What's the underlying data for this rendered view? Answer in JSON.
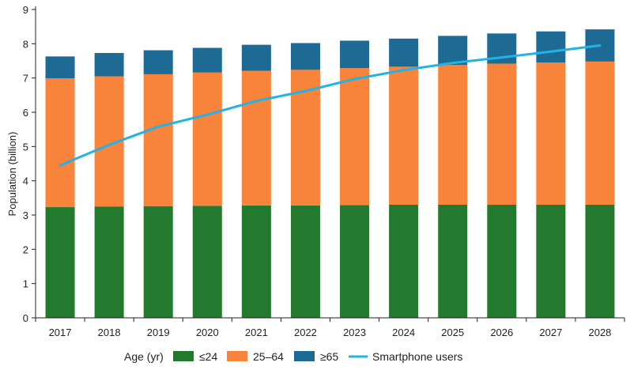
{
  "chart_data": {
    "type": "bar",
    "stacked": true,
    "title": "",
    "xlabel": "",
    "ylabel": "Population (billion)",
    "ylim": [
      0,
      9
    ],
    "yticks": [
      "0",
      "1",
      "2",
      "3",
      "4",
      "5",
      "6",
      "7",
      "8",
      "9"
    ],
    "categories": [
      "2017",
      "2018",
      "2019",
      "2020",
      "2021",
      "2022",
      "2023",
      "2024",
      "2025",
      "2026",
      "2027",
      "2028"
    ],
    "series": [
      {
        "name": "≤24",
        "color": "#237a2e",
        "values": [
          3.23,
          3.25,
          3.26,
          3.27,
          3.28,
          3.28,
          3.29,
          3.3,
          3.3,
          3.3,
          3.3,
          3.3
        ]
      },
      {
        "name": "25–64",
        "color": "#f7843a",
        "values": [
          3.76,
          3.8,
          3.85,
          3.89,
          3.93,
          3.96,
          4.0,
          4.03,
          4.08,
          4.12,
          4.15,
          4.18
        ]
      },
      {
        "name": "≥65",
        "color": "#1d6b94",
        "values": [
          0.64,
          0.68,
          0.7,
          0.72,
          0.76,
          0.78,
          0.8,
          0.82,
          0.85,
          0.88,
          0.91,
          0.94
        ]
      }
    ],
    "line_series": {
      "name": "Smartphone users",
      "color": "#22b2e6",
      "values": [
        4.45,
        5.05,
        5.58,
        5.93,
        6.33,
        6.62,
        6.97,
        7.23,
        7.44,
        7.6,
        7.77,
        7.95
      ]
    },
    "legend": {
      "title": "Age (yr)",
      "position": "bottom"
    }
  }
}
